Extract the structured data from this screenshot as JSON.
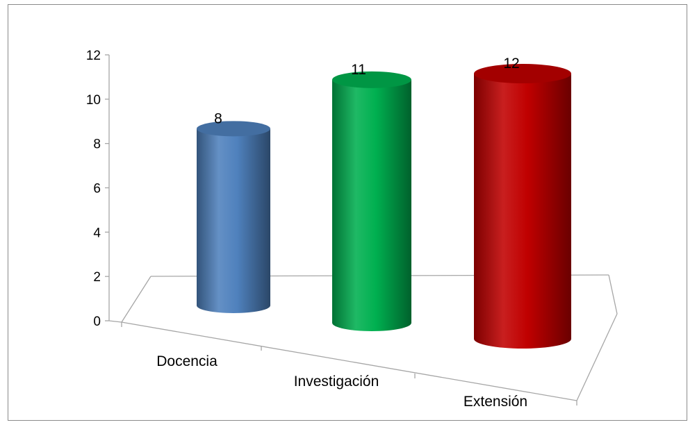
{
  "chart_data": {
    "type": "bar",
    "style": "3d-cylinder",
    "categories": [
      "Docencia",
      "Investigación",
      "Extensión"
    ],
    "values": [
      8,
      11,
      12
    ],
    "colors": [
      "#4f81bd",
      "#00b050",
      "#c00000"
    ],
    "ylim": [
      0,
      12
    ],
    "yticks": [
      0,
      2,
      4,
      6,
      8,
      10,
      12
    ],
    "grid": false,
    "legend": "none"
  }
}
